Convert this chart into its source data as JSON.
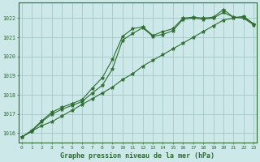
{
  "bg_color": "#cce8e8",
  "grid_color": "#aacccc",
  "line_color": "#2d6e2d",
  "title": "Graphe pression niveau de la mer (hPa)",
  "xlim_min": -0.3,
  "xlim_max": 23.3,
  "ylim_min": 1015.5,
  "ylim_max": 1022.8,
  "yticks": [
    1016,
    1017,
    1018,
    1019,
    1020,
    1021,
    1022
  ],
  "xticks": [
    0,
    1,
    2,
    3,
    4,
    5,
    6,
    7,
    8,
    9,
    10,
    11,
    12,
    13,
    14,
    15,
    16,
    17,
    18,
    19,
    20,
    21,
    22,
    23
  ],
  "series1_x": [
    0,
    1,
    2,
    3,
    4,
    5,
    6,
    7,
    8,
    9,
    10,
    11,
    12,
    13,
    14,
    15,
    16,
    17,
    18,
    19,
    20,
    21,
    22,
    23
  ],
  "series1_y": [
    1015.8,
    1016.1,
    1016.4,
    1016.6,
    1016.9,
    1017.2,
    1017.5,
    1017.8,
    1018.1,
    1018.4,
    1018.8,
    1019.1,
    1019.5,
    1019.8,
    1020.1,
    1020.4,
    1020.7,
    1021.0,
    1021.3,
    1021.6,
    1021.9,
    1022.0,
    1022.1,
    1021.7
  ],
  "series2_x": [
    0,
    1,
    2,
    3,
    4,
    5,
    6,
    7,
    8,
    9,
    10,
    11,
    12,
    13,
    14,
    15,
    16,
    17,
    18,
    19,
    20,
    21,
    22,
    23
  ],
  "series2_y": [
    1015.8,
    1016.1,
    1016.6,
    1017.0,
    1017.25,
    1017.45,
    1017.65,
    1018.1,
    1018.5,
    1019.35,
    1020.85,
    1021.2,
    1021.5,
    1021.05,
    1021.15,
    1021.35,
    1021.95,
    1022.0,
    1021.95,
    1022.0,
    1022.3,
    1022.05,
    1022.0,
    1021.65
  ],
  "series3_x": [
    0,
    1,
    2,
    3,
    4,
    5,
    6,
    7,
    8,
    9,
    10,
    11,
    12,
    13,
    14,
    15,
    16,
    17,
    18,
    19,
    20,
    21,
    22,
    23
  ],
  "series3_y": [
    1015.8,
    1016.15,
    1016.65,
    1017.1,
    1017.35,
    1017.55,
    1017.75,
    1018.35,
    1018.9,
    1019.85,
    1021.05,
    1021.45,
    1021.55,
    1021.1,
    1021.3,
    1021.45,
    1022.0,
    1022.05,
    1022.0,
    1022.05,
    1022.45,
    1022.05,
    1022.05,
    1021.7
  ],
  "figwidth": 3.2,
  "figheight": 2.0,
  "dpi": 100
}
